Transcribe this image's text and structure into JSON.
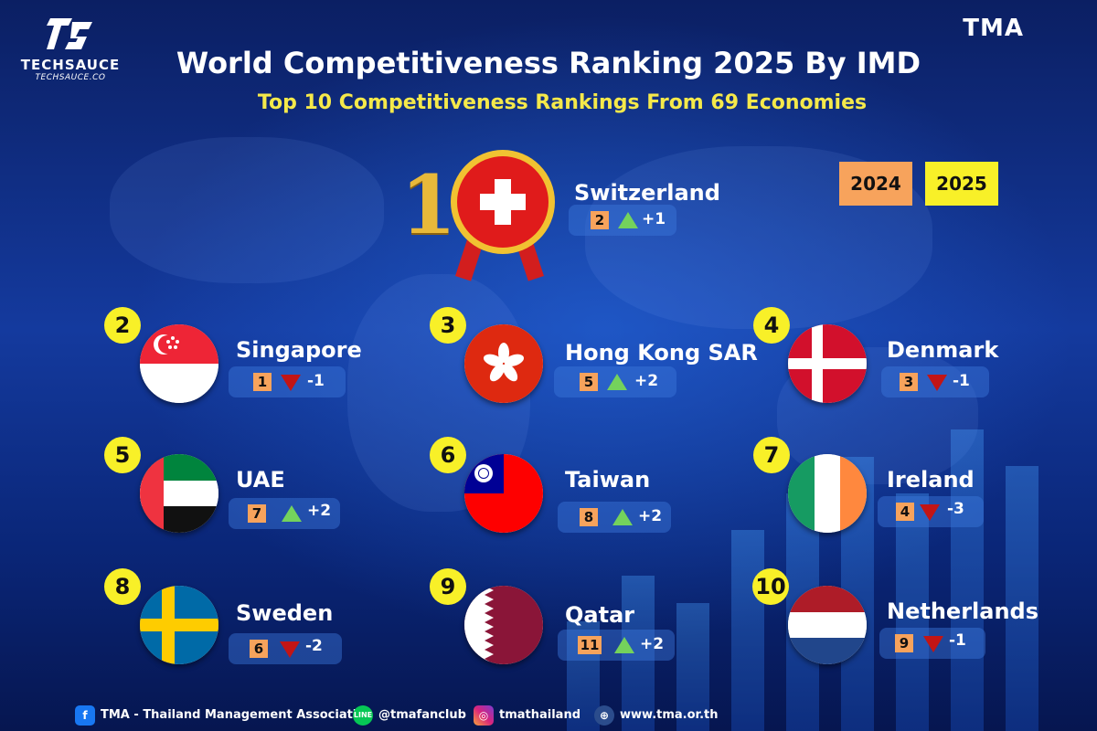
{
  "header": {
    "title": "World Competitiveness Ranking 2025 By IMD",
    "subtitle": "Top 10 Competitiveness Rankings  From 69 Economies",
    "logo_left_name": "TECHSAUCE",
    "logo_left_sub": "TECHSAUCE.CO",
    "logo_right": "TMA"
  },
  "legend": {
    "prev_year": "2024",
    "curr_year": "2025",
    "prev_color": "#f7a35c",
    "curr_color": "#f8f028"
  },
  "rankings": [
    {
      "rank": "1",
      "country": "Switzerland",
      "prev_rank": "2",
      "trend": "up",
      "change": "+1",
      "flag_icon": "switzerland-flag-icon"
    },
    {
      "rank": "2",
      "country": "Singapore",
      "prev_rank": "1",
      "trend": "down",
      "change": "-1",
      "flag_icon": "singapore-flag-icon"
    },
    {
      "rank": "3",
      "country": "Hong Kong SAR",
      "prev_rank": "5",
      "trend": "up",
      "change": "+2",
      "flag_icon": "hong-kong-flag-icon"
    },
    {
      "rank": "4",
      "country": "Denmark",
      "prev_rank": "3",
      "trend": "down",
      "change": "-1",
      "flag_icon": "denmark-flag-icon"
    },
    {
      "rank": "5",
      "country": "UAE",
      "prev_rank": "7",
      "trend": "up",
      "change": "+2",
      "flag_icon": "uae-flag-icon"
    },
    {
      "rank": "6",
      "country": "Taiwan",
      "prev_rank": "8",
      "trend": "up",
      "change": "+2",
      "flag_icon": "taiwan-flag-icon"
    },
    {
      "rank": "7",
      "country": "Ireland",
      "prev_rank": "4",
      "trend": "down",
      "change": "-3",
      "flag_icon": "ireland-flag-icon"
    },
    {
      "rank": "8",
      "country": "Sweden",
      "prev_rank": "6",
      "trend": "down",
      "change": "-2",
      "flag_icon": "sweden-flag-icon"
    },
    {
      "rank": "9",
      "country": "Qatar",
      "prev_rank": "11",
      "trend": "up",
      "change": "+2",
      "flag_icon": "qatar-flag-icon"
    },
    {
      "rank": "10",
      "country": "Netherlands",
      "prev_rank": "9",
      "trend": "down",
      "change": "-1",
      "flag_icon": "netherlands-flag-icon"
    }
  ],
  "footer": {
    "facebook": "TMA - Thailand Management Association",
    "line": "@tmafanclub",
    "instagram": "tmathailand",
    "website": "www.tma.or.th",
    "icons": [
      "facebook-icon",
      "line-icon",
      "instagram-icon",
      "globe-icon"
    ]
  }
}
